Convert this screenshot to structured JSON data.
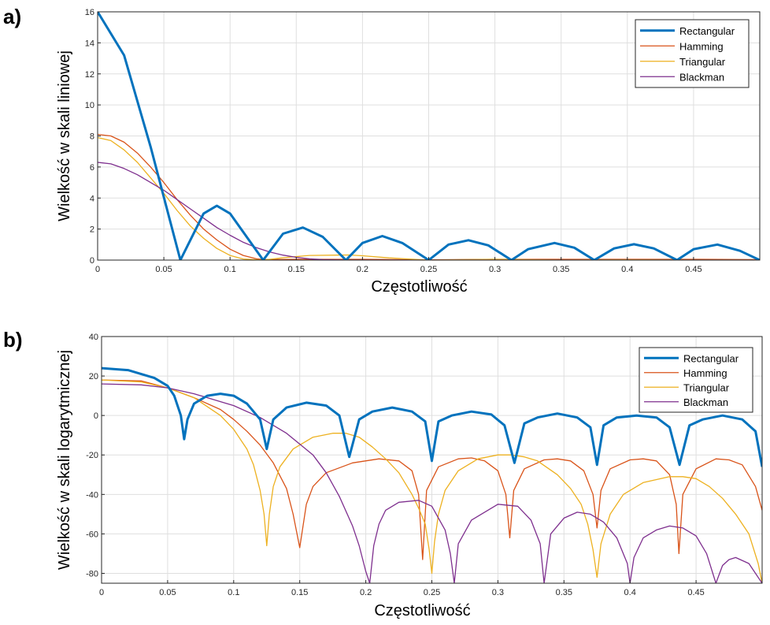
{
  "chart_data": [
    {
      "panel": "a)",
      "type": "line",
      "xlabel": "Częstotliwość",
      "ylabel": "Wielkość w skali liniowej",
      "xlim": [
        0,
        0.5
      ],
      "ylim": [
        0,
        16
      ],
      "x_ticks": [
        "0",
        "0.05",
        "0.1",
        "0.15",
        "0.2",
        "0.25",
        "0.3",
        "0.35",
        "0.4",
        "0.45"
      ],
      "y_ticks": [
        "0",
        "2",
        "4",
        "6",
        "8",
        "10",
        "12",
        "14",
        "16"
      ],
      "grid": true,
      "legend_position": "top-right",
      "series": [
        {
          "name": "Rectangular",
          "color": "#0072BD",
          "width": "thick",
          "x": [
            0,
            0.02,
            0.04,
            0.0625,
            0.08,
            0.09,
            0.1,
            0.125,
            0.14,
            0.155,
            0.17,
            0.1875,
            0.2,
            0.215,
            0.23,
            0.25,
            0.265,
            0.28,
            0.295,
            0.3125,
            0.325,
            0.345,
            0.36,
            0.375,
            0.39,
            0.405,
            0.42,
            0.4375,
            0.45,
            0.468,
            0.485,
            0.5
          ],
          "y": [
            16,
            13.2,
            7.3,
            0,
            3.0,
            3.5,
            3.0,
            0,
            1.7,
            2.1,
            1.5,
            0,
            1.1,
            1.55,
            1.1,
            0,
            1.0,
            1.28,
            0.95,
            0,
            0.7,
            1.1,
            0.8,
            0,
            0.75,
            1.02,
            0.75,
            0,
            0.7,
            1.0,
            0.6,
            0
          ]
        },
        {
          "name": "Hamming",
          "color": "#D95319",
          "x": [
            0,
            0.01,
            0.02,
            0.03,
            0.04,
            0.05,
            0.06,
            0.07,
            0.08,
            0.09,
            0.1,
            0.11,
            0.12,
            0.125,
            0.15,
            0.2,
            0.25,
            0.3,
            0.35,
            0.4,
            0.45,
            0.5
          ],
          "y": [
            8.1,
            8.0,
            7.6,
            6.9,
            6.0,
            5.0,
            3.9,
            2.9,
            2.0,
            1.3,
            0.7,
            0.3,
            0.08,
            0.03,
            0.05,
            0.05,
            0.02,
            0.05,
            0.05,
            0.05,
            0.05,
            0.03
          ]
        },
        {
          "name": "Triangular",
          "color": "#EDB120",
          "x": [
            0,
            0.01,
            0.02,
            0.03,
            0.04,
            0.05,
            0.06,
            0.07,
            0.08,
            0.09,
            0.1,
            0.11,
            0.125,
            0.14,
            0.16,
            0.18,
            0.19,
            0.2,
            0.22,
            0.25,
            0.3,
            0.35,
            0.4,
            0.45,
            0.5
          ],
          "y": [
            7.9,
            7.7,
            7.1,
            6.3,
            5.3,
            4.3,
            3.2,
            2.2,
            1.4,
            0.75,
            0.3,
            0.07,
            0,
            0.15,
            0.3,
            0.32,
            0.33,
            0.28,
            0.14,
            0,
            0.05,
            0,
            0.02,
            0,
            0
          ]
        },
        {
          "name": "Blackman",
          "color": "#7E2F8E",
          "x": [
            0,
            0.01,
            0.02,
            0.03,
            0.04,
            0.05,
            0.06,
            0.07,
            0.08,
            0.09,
            0.1,
            0.11,
            0.12,
            0.13,
            0.14,
            0.15,
            0.16,
            0.17,
            0.18,
            0.19,
            0.2,
            0.25,
            0.3,
            0.35,
            0.4,
            0.45,
            0.5
          ],
          "y": [
            6.3,
            6.2,
            5.9,
            5.5,
            5.0,
            4.5,
            3.9,
            3.3,
            2.7,
            2.1,
            1.6,
            1.15,
            0.8,
            0.52,
            0.32,
            0.18,
            0.08,
            0.03,
            0.01,
            0,
            0,
            0,
            0,
            0,
            0,
            0,
            0
          ]
        }
      ]
    },
    {
      "panel": "b)",
      "type": "line",
      "xlabel": "Częstotliwość",
      "ylabel": "Wielkość w skali logarytmicznej",
      "xlim": [
        0,
        0.5
      ],
      "ylim": [
        -85,
        40
      ],
      "x_ticks": [
        "0",
        "0.05",
        "0.1",
        "0.15",
        "0.2",
        "0.25",
        "0.3",
        "0.35",
        "0.4",
        "0.45"
      ],
      "y_ticks": [
        "-80",
        "-60",
        "-40",
        "-20",
        "0",
        "20",
        "40"
      ],
      "grid": true,
      "legend_position": "top-right",
      "series": [
        {
          "name": "Rectangular",
          "color": "#0072BD",
          "width": "thick",
          "x": [
            0,
            0.02,
            0.04,
            0.05,
            0.055,
            0.06,
            0.0625,
            0.065,
            0.07,
            0.08,
            0.09,
            0.1,
            0.11,
            0.12,
            0.125,
            0.13,
            0.14,
            0.155,
            0.17,
            0.18,
            0.1875,
            0.195,
            0.205,
            0.22,
            0.235,
            0.245,
            0.25,
            0.255,
            0.265,
            0.28,
            0.295,
            0.305,
            0.3125,
            0.32,
            0.33,
            0.345,
            0.36,
            0.37,
            0.375,
            0.38,
            0.39,
            0.405,
            0.42,
            0.43,
            0.4375,
            0.445,
            0.455,
            0.47,
            0.485,
            0.495,
            0.5
          ],
          "y": [
            24,
            23,
            19,
            15,
            10,
            0,
            -12,
            -2,
            6,
            10,
            11,
            10,
            6,
            -2,
            -17,
            -2,
            4,
            6.5,
            5,
            0,
            -21,
            -2,
            2,
            4,
            2,
            -3,
            -23,
            -3,
            0,
            2,
            0.5,
            -5,
            -24,
            -4,
            -1,
            1,
            -1,
            -6,
            -25,
            -5,
            -1,
            0,
            -1,
            -6,
            -25,
            -5,
            -2,
            0,
            -2,
            -8,
            -26
          ]
        },
        {
          "name": "Hamming",
          "color": "#D95319",
          "x": [
            0,
            0.03,
            0.05,
            0.07,
            0.09,
            0.1,
            0.11,
            0.12,
            0.13,
            0.14,
            0.145,
            0.15,
            0.155,
            0.16,
            0.17,
            0.19,
            0.21,
            0.225,
            0.235,
            0.24,
            0.243,
            0.246,
            0.255,
            0.27,
            0.28,
            0.29,
            0.3,
            0.306,
            0.309,
            0.312,
            0.32,
            0.335,
            0.345,
            0.355,
            0.365,
            0.372,
            0.375,
            0.378,
            0.385,
            0.4,
            0.41,
            0.42,
            0.43,
            0.435,
            0.437,
            0.44,
            0.45,
            0.465,
            0.475,
            0.485,
            0.495,
            0.5
          ],
          "y": [
            18,
            17.5,
            14,
            9,
            3,
            -2,
            -8,
            -15,
            -24,
            -37,
            -50,
            -67,
            -45,
            -36,
            -29,
            -24,
            -22,
            -23,
            -28,
            -40,
            -73,
            -38,
            -26,
            -22,
            -21.5,
            -23,
            -28,
            -40,
            -62,
            -38,
            -27,
            -22.5,
            -22,
            -23,
            -28,
            -40,
            -57,
            -38,
            -27,
            -22.5,
            -22,
            -23,
            -30,
            -45,
            -70,
            -40,
            -27,
            -22,
            -22.5,
            -25,
            -36,
            -48
          ]
        },
        {
          "name": "Triangular",
          "color": "#EDB120",
          "x": [
            0,
            0.03,
            0.05,
            0.07,
            0.09,
            0.1,
            0.11,
            0.115,
            0.12,
            0.123,
            0.125,
            0.127,
            0.13,
            0.135,
            0.145,
            0.16,
            0.175,
            0.185,
            0.195,
            0.205,
            0.215,
            0.225,
            0.235,
            0.24,
            0.245,
            0.248,
            0.25,
            0.252,
            0.255,
            0.26,
            0.27,
            0.285,
            0.3,
            0.31,
            0.32,
            0.33,
            0.345,
            0.355,
            0.363,
            0.368,
            0.372,
            0.375,
            0.378,
            0.385,
            0.395,
            0.41,
            0.43,
            0.44,
            0.45,
            0.46,
            0.47,
            0.48,
            0.49,
            0.497,
            0.5
          ],
          "y": [
            18,
            17,
            14,
            9,
            0,
            -7,
            -17,
            -25,
            -38,
            -50,
            -66,
            -50,
            -36,
            -26,
            -17,
            -11,
            -9,
            -9,
            -11,
            -16,
            -22,
            -29,
            -40,
            -47,
            -55,
            -68,
            -80,
            -64,
            -50,
            -38,
            -28,
            -22,
            -20,
            -20,
            -21,
            -23,
            -30,
            -37,
            -45,
            -55,
            -68,
            -82,
            -65,
            -50,
            -40,
            -34,
            -31,
            -31,
            -32,
            -36,
            -42,
            -50,
            -60,
            -75,
            -85
          ]
        },
        {
          "name": "Blackman",
          "color": "#7E2F8E",
          "x": [
            0,
            0.03,
            0.05,
            0.07,
            0.09,
            0.1,
            0.12,
            0.14,
            0.16,
            0.17,
            0.18,
            0.19,
            0.195,
            0.2,
            0.203,
            0.206,
            0.21,
            0.215,
            0.225,
            0.24,
            0.25,
            0.26,
            0.264,
            0.267,
            0.27,
            0.28,
            0.3,
            0.315,
            0.325,
            0.332,
            0.335,
            0.34,
            0.35,
            0.36,
            0.37,
            0.38,
            0.39,
            0.398,
            0.4,
            0.403,
            0.41,
            0.42,
            0.43,
            0.44,
            0.45,
            0.458,
            0.465,
            0.47,
            0.475,
            0.48,
            0.49,
            0.5
          ],
          "y": [
            16,
            15.5,
            14,
            11,
            7,
            5,
            -1,
            -9,
            -20,
            -29,
            -41,
            -56,
            -66,
            -79,
            -85,
            -66,
            -55,
            -48,
            -44,
            -43,
            -46,
            -58,
            -70,
            -85,
            -65,
            -53,
            -45,
            -46,
            -53,
            -65,
            -85,
            -60,
            -52,
            -49,
            -50,
            -54,
            -62,
            -75,
            -85,
            -72,
            -62,
            -58,
            -56,
            -57,
            -61,
            -70,
            -85,
            -76,
            -73,
            -72,
            -75,
            -85
          ]
        }
      ]
    }
  ]
}
